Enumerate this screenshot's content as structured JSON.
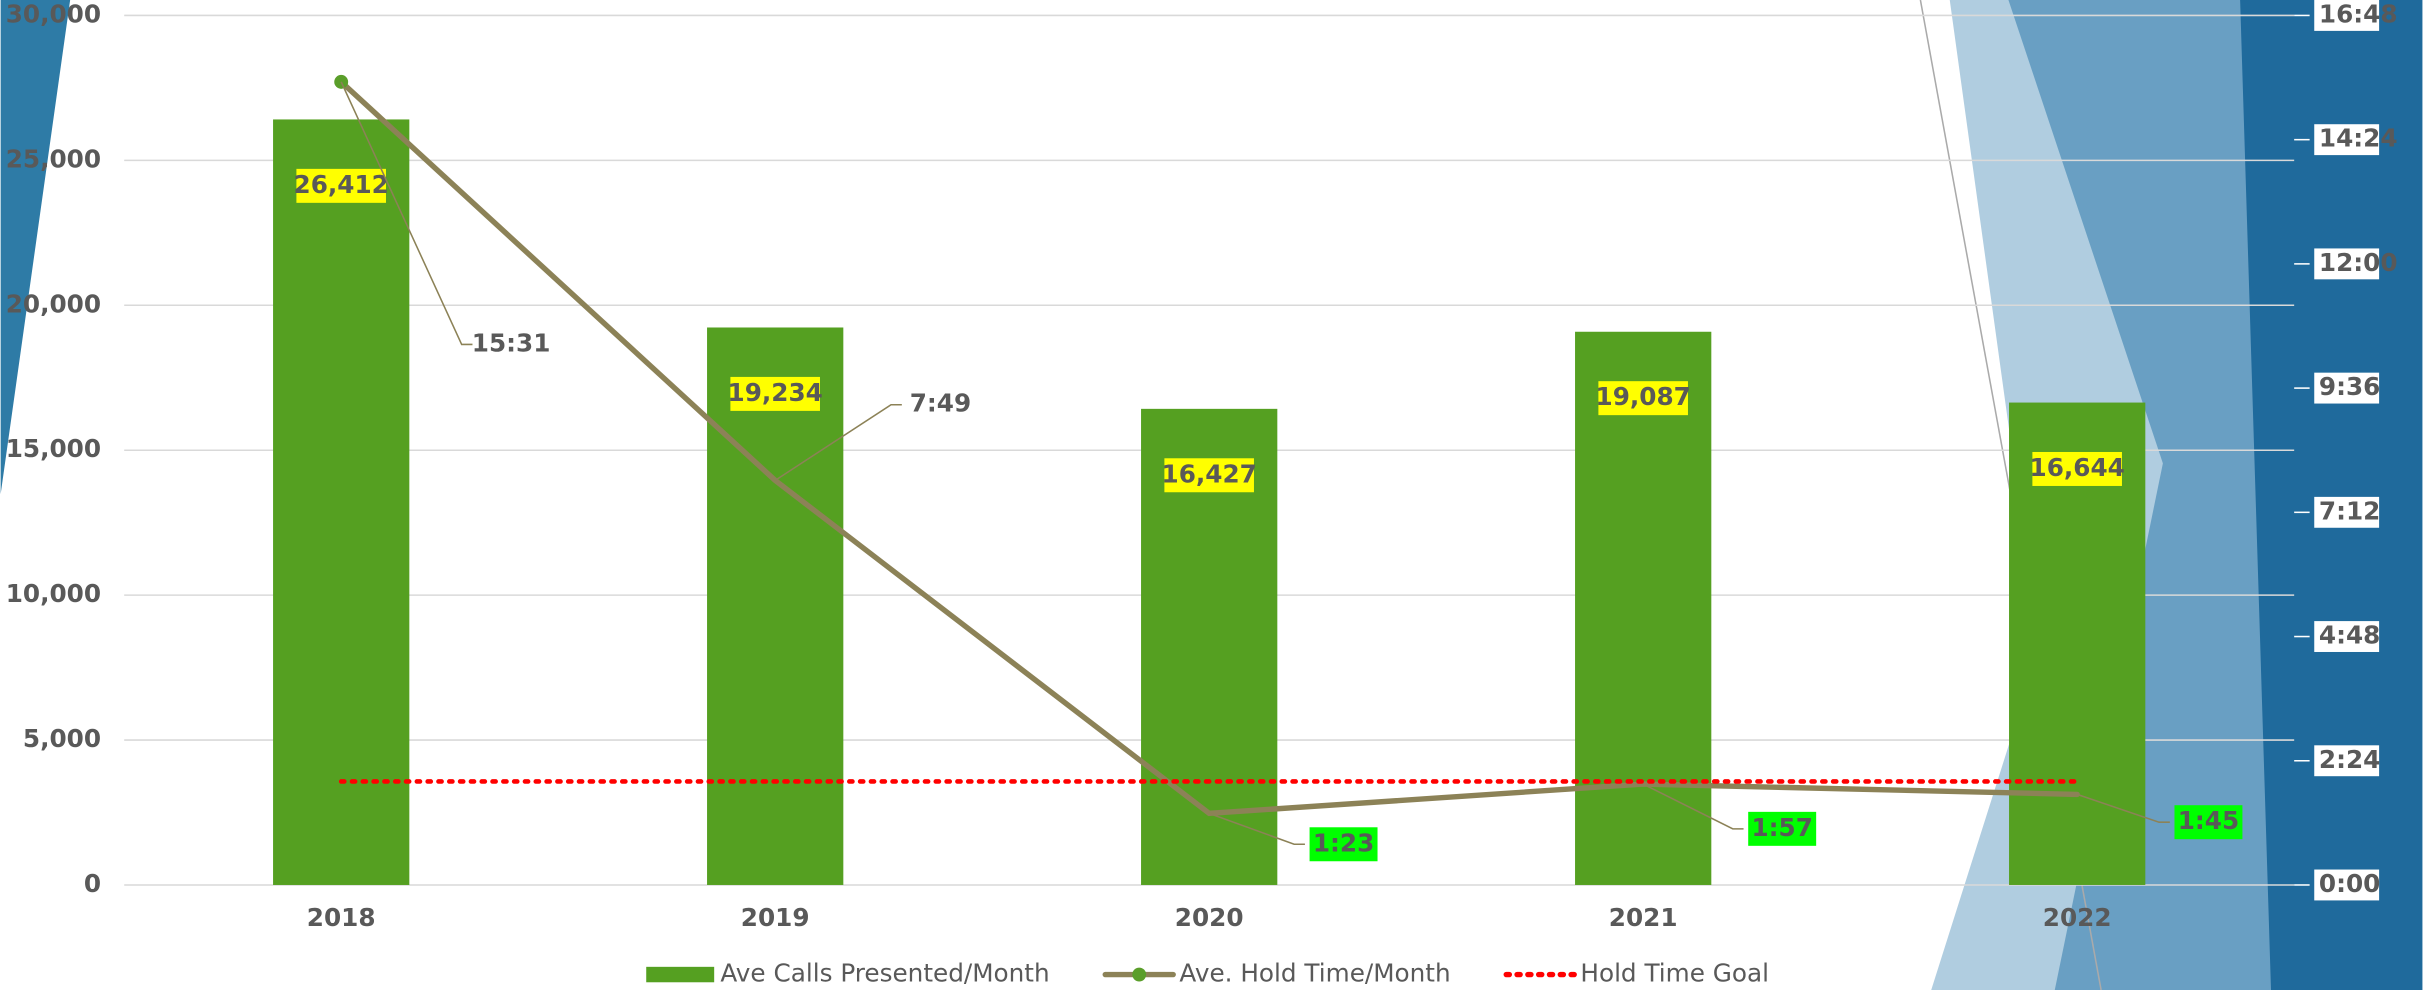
{
  "chart_data": {
    "type": "bar",
    "categories": [
      "2018",
      "2019",
      "2020",
      "2021",
      "2022"
    ],
    "series": [
      {
        "name": "Ave Calls Presented/Month",
        "type": "bar",
        "color": "#55a021",
        "values": [
          26412,
          19234,
          16427,
          19087,
          16644
        ],
        "value_labels": [
          "26,412",
          "19,234",
          "16,427",
          "19,087",
          "16,644"
        ]
      },
      {
        "name": "Ave. Hold Time/Month",
        "type": "line",
        "axis": "y2",
        "color": "#8c8257",
        "values": [
          931,
          469,
          83,
          117,
          105
        ],
        "value_labels": [
          "15:31",
          "7:49",
          "1:23",
          "1:57",
          "1:45"
        ]
      },
      {
        "name": "Hold Time Goal",
        "type": "line",
        "axis": "y2",
        "color": "#ff0000",
        "dashed": true,
        "values": [
          120,
          120,
          120,
          120,
          120
        ]
      }
    ],
    "ylim": [
      0,
      30000
    ],
    "yticks": [
      0,
      {
        "value": 5000,
        "label": "5,000"
      },
      {
        "value": 10000,
        "label": "10,000"
      },
      {
        "value": 15000,
        "label": "15,000"
      },
      {
        "value": 20000,
        "label": "20,000"
      },
      {
        "value": 25000,
        "label": "25,000"
      },
      {
        "value": 30000,
        "label": "30,000"
      }
    ],
    "y2lim": [
      0,
      1008
    ],
    "y2ticks": [
      {
        "value": 0,
        "label": "0:00"
      },
      {
        "value": 144,
        "label": "2:24"
      },
      {
        "value": 288,
        "label": "4:48"
      },
      {
        "value": 432,
        "label": "7:12"
      },
      {
        "value": 576,
        "label": "9:36"
      },
      {
        "value": 720,
        "label": "12:00"
      },
      {
        "value": 864,
        "label": "14:24"
      },
      {
        "value": 1008,
        "label": "16:48"
      }
    ],
    "grid": true,
    "legend": "bottom"
  }
}
